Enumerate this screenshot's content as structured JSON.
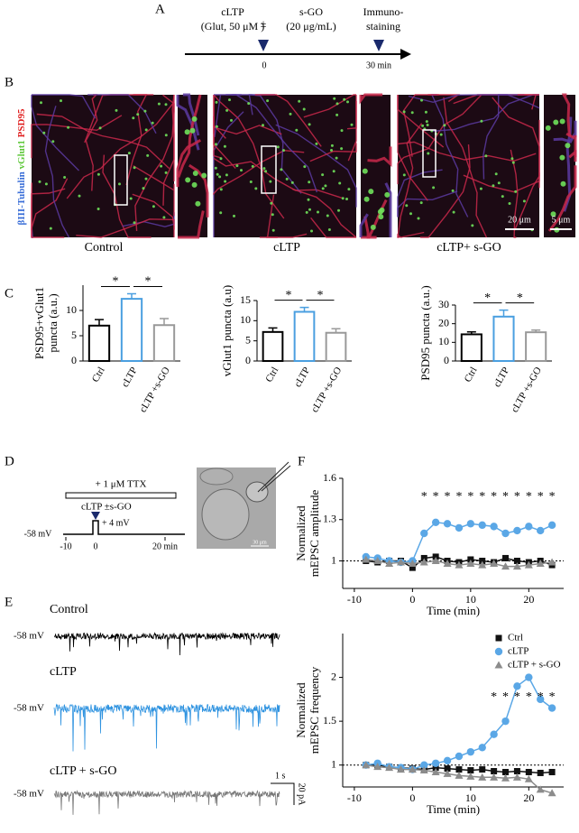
{
  "panel_labels": [
    "A",
    "B",
    "C",
    "D",
    "E",
    "F"
  ],
  "panel_a": {
    "step1": [
      "cLTP",
      "(Glut, 50 μM )"
    ],
    "plus_minus": "±",
    "step2": [
      "s-GO",
      "(20 μg/mL)"
    ],
    "step3": [
      "Immuno-",
      "staining"
    ],
    "ticks": [
      "0",
      "30 min"
    ]
  },
  "panel_b": {
    "stain_labels": [
      {
        "text": "βIII-Tubulin",
        "color": "#3b6fd8"
      },
      {
        "text": "vGlut1",
        "color": "#5ec83a"
      },
      {
        "text": "PSD95",
        "color": "#e02020"
      }
    ],
    "conditions": [
      "Control",
      "cLTP",
      "cLTP+ s-GO"
    ],
    "scale_bars": [
      "20 μm",
      "5 μm"
    ]
  },
  "panel_d": {
    "ttx": "+ 1 μM TTX",
    "treatment": "cLTP ±s-GO",
    "holding": "-58 mV",
    "step": "+ 4 mV",
    "ticks": [
      "-10",
      "0",
      "20 min"
    ],
    "image_scale": "30 μm"
  },
  "panel_e": {
    "traces": [
      {
        "name": "Control",
        "holding": "-58 mV",
        "color": "#000000"
      },
      {
        "name": "cLTP",
        "holding": "-58 mV",
        "color": "#2f93e0"
      },
      {
        "name": "cLTP + s-GO",
        "holding": "-58 mV",
        "color": "#777777"
      }
    ],
    "scale_time": "1 s",
    "scale_current": "20 pA"
  },
  "chart_data": [
    {
      "type": "bar",
      "ylabel": [
        "PSD95+vGlut1",
        "puncta (a.u.)"
      ],
      "categories": [
        "Ctrl",
        "cLTP",
        "cLTP +s-GO"
      ],
      "values": [
        7,
        12.3,
        7.1
      ],
      "errors": [
        1.2,
        1.0,
        1.3
      ],
      "colors": [
        "#000000",
        "#4a9fe0",
        "#999999"
      ],
      "ylim": [
        0,
        15
      ],
      "yticks": [
        0,
        5,
        10
      ],
      "annotations": [
        "*",
        "*"
      ]
    },
    {
      "type": "bar",
      "ylabel": [
        "vGlut1 puncta (a.u)"
      ],
      "categories": [
        "Ctrl",
        "cLTP",
        "cLTP +s-GO"
      ],
      "values": [
        7.2,
        12.2,
        7.0
      ],
      "errors": [
        1.0,
        1.1,
        1.0
      ],
      "colors": [
        "#000000",
        "#4a9fe0",
        "#999999"
      ],
      "ylim": [
        0,
        15
      ],
      "yticks": [
        0,
        5,
        10,
        15
      ],
      "annotations": [
        "*",
        "*"
      ]
    },
    {
      "type": "bar",
      "ylabel": [
        "PSD95 puncta (a.u.)"
      ],
      "categories": [
        "Ctrl",
        "cLTP",
        "cLTP +s-GO"
      ],
      "values": [
        14.3,
        23.8,
        15.4
      ],
      "errors": [
        1.3,
        3.5,
        1.2
      ],
      "colors": [
        "#000000",
        "#4a9fe0",
        "#999999"
      ],
      "ylim": [
        0,
        30
      ],
      "yticks": [
        0,
        10,
        20,
        30
      ],
      "annotations": [
        "*",
        "*"
      ]
    },
    {
      "type": "line",
      "ylabel": [
        "Normalized",
        "mEPSC amplitude"
      ],
      "xlabel": "Time (min)",
      "x": [
        -8,
        -6,
        -4,
        -2,
        0,
        2,
        4,
        6,
        8,
        10,
        12,
        14,
        16,
        18,
        20,
        22,
        24
      ],
      "series": [
        {
          "color": "#111111",
          "marker": "square",
          "values": [
            1.0,
            0.99,
            1.0,
            1.0,
            0.95,
            1.02,
            1.03,
            1.0,
            0.99,
            1.01,
            1.0,
            0.99,
            1.02,
            1.0,
            0.99,
            1.0,
            0.97
          ]
        },
        {
          "color": "#5aa7e6",
          "marker": "circle",
          "values": [
            1.03,
            1.02,
            1.0,
            0.99,
            1.0,
            1.2,
            1.28,
            1.27,
            1.24,
            1.27,
            1.26,
            1.25,
            1.2,
            1.22,
            1.25,
            1.22,
            1.26
          ]
        },
        {
          "color": "#8c8c8c",
          "marker": "triangle",
          "values": [
            1.01,
            1.0,
            0.98,
            0.99,
            0.98,
            0.99,
            1.0,
            0.98,
            0.97,
            0.98,
            0.97,
            0.98,
            0.96,
            0.96,
            0.97,
            0.98,
            0.99
          ]
        }
      ],
      "xlim": [
        -12,
        26
      ],
      "xticks": [
        -10,
        0,
        10,
        20
      ],
      "ylim": [
        0.8,
        1.6
      ],
      "yticks": [
        1,
        1.3,
        1.6
      ],
      "reference_line": 1,
      "significance": {
        "label": "*",
        "x": [
          2,
          4,
          6,
          8,
          10,
          12,
          14,
          16,
          18,
          20,
          22,
          24
        ]
      }
    },
    {
      "type": "line",
      "ylabel": [
        "Normalized",
        "mEPSC frequency"
      ],
      "xlabel": "Time (min)",
      "x": [
        -8,
        -6,
        -4,
        -2,
        0,
        2,
        4,
        6,
        8,
        10,
        12,
        14,
        16,
        18,
        20,
        22,
        24
      ],
      "series": [
        {
          "name": "Ctrl",
          "color": "#111111",
          "marker": "square",
          "values": [
            1.0,
            1.0,
            0.98,
            0.97,
            0.96,
            0.95,
            0.97,
            0.96,
            0.95,
            0.94,
            0.95,
            0.93,
            0.92,
            0.93,
            0.92,
            0.91,
            0.92
          ]
        },
        {
          "name": "cLTP",
          "color": "#5aa7e6",
          "marker": "circle",
          "values": [
            1.0,
            1.02,
            0.98,
            0.97,
            0.95,
            1.0,
            1.02,
            1.05,
            1.1,
            1.15,
            1.2,
            1.35,
            1.5,
            1.9,
            2.0,
            1.75,
            1.65
          ]
        },
        {
          "name": "cLTP + s-GO",
          "color": "#8c8c8c",
          "marker": "triangle",
          "values": [
            1.0,
            0.98,
            0.97,
            0.95,
            0.95,
            0.94,
            0.92,
            0.9,
            0.88,
            0.87,
            0.86,
            0.86,
            0.85,
            0.86,
            0.84,
            0.72,
            0.68
          ]
        }
      ],
      "xlim": [
        -12,
        26
      ],
      "xticks": [
        -10,
        0,
        10,
        20
      ],
      "ylim": [
        0.75,
        2.5
      ],
      "yticks": [
        1,
        1.5,
        2
      ],
      "reference_line": 1,
      "legend": "upper right",
      "significance": {
        "label": "*",
        "x": [
          14,
          16,
          18,
          20,
          22,
          24
        ]
      }
    }
  ]
}
